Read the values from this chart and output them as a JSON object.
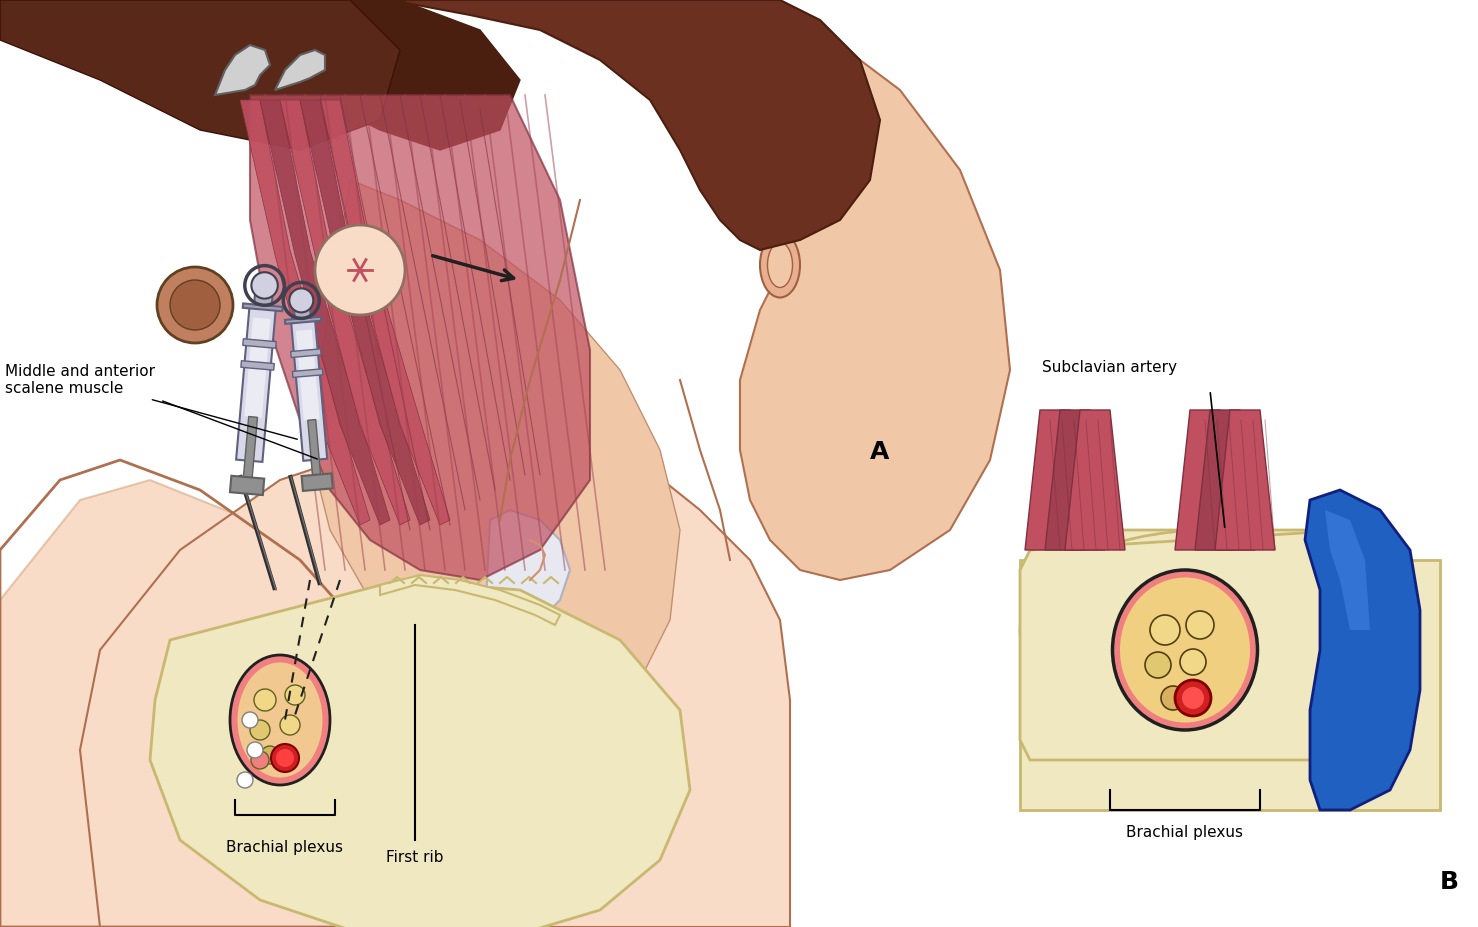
{
  "figsize": [
    14.78,
    9.27
  ],
  "dpi": 100,
  "bg_color": "#ffffff",
  "skin_color": "#f0c8a8",
  "skin_light": "#f8dcc8",
  "skin_dark": "#e8b090",
  "muscle_red": "#c05060",
  "muscle_mid": "#a04050",
  "muscle_dark": "#803040",
  "bone_color": "#f0e8c0",
  "bone_outline": "#c8b870",
  "nerve_yellow": "#f0d888",
  "nerve_cream": "#e8d070",
  "artery_red": "#d02020",
  "artery_pink": "#f08080",
  "blue_vessel": "#2060c0",
  "blue_vessel_light": "#4080e0",
  "gray_metal": "#c0c0c0",
  "gray_dark": "#808080",
  "label_A": "A",
  "label_B": "B",
  "label_middle_anterior": "Middle and anterior\nscalene muscle",
  "label_brachial_A": "Brachial plexus",
  "label_first_rib": "First rib",
  "label_brachial_B": "Brachial plexus",
  "label_subclavian": "Subclavian artery",
  "hair_brown": "#6b3020",
  "hair_dark": "#4a1f10"
}
